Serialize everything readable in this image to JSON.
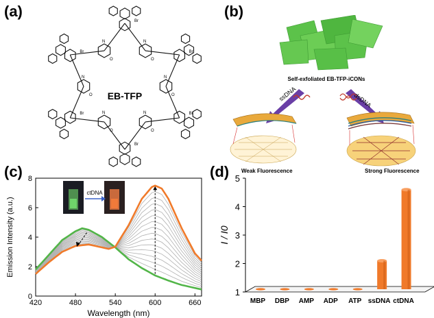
{
  "panels": {
    "a": {
      "letter": "(a)",
      "center_label": "EB-TFP",
      "atom_labels": {
        "bromide": "Br",
        "nitrogen": "N",
        "oxygen": "O"
      }
    },
    "b": {
      "letter": "(b)",
      "title": "Self-exfoliated EB-TFP-iCONs",
      "arrow_left": "ssDNA",
      "arrow_right": "dsDNA",
      "caption_left": "Weak Fluorescence",
      "caption_right": "Strong Fluorescence"
    },
    "c": {
      "letter": "(c)",
      "inset_label": "ctDNA"
    },
    "d": {
      "letter": "(d)"
    }
  },
  "colors": {
    "orange": "#f07a2a",
    "green": "#52b548",
    "gray": "#b0b0b0",
    "sheet_green": "#5cc24a",
    "arrow_purple": "#6a3fa6"
  },
  "chart_data": [
    {
      "id": "c",
      "type": "line",
      "xlabel": "Wavelength (nm)",
      "ylabel": "Emission Intensity (a.u.)",
      "xlim": [
        420,
        670
      ],
      "ylim": [
        0,
        8
      ],
      "xticks": [
        "420",
        "480",
        "540",
        "600",
        "660"
      ],
      "yticks": [
        "0",
        "2",
        "4",
        "6",
        "8"
      ],
      "series": [
        {
          "role": "initial (green)",
          "x": [
            420,
            440,
            460,
            480,
            490,
            500,
            520,
            540,
            560,
            580,
            600,
            620,
            640,
            660,
            670
          ],
          "y": [
            1.8,
            2.8,
            3.8,
            4.4,
            4.6,
            4.5,
            4.0,
            3.3,
            2.5,
            1.9,
            1.4,
            1.05,
            0.75,
            0.55,
            0.45
          ]
        },
        {
          "role": "final (orange)",
          "x": [
            420,
            440,
            460,
            480,
            500,
            520,
            530,
            540,
            560,
            580,
            595,
            600,
            610,
            620,
            640,
            660,
            670
          ],
          "y": [
            1.5,
            2.3,
            3.0,
            3.4,
            3.5,
            3.3,
            3.2,
            3.35,
            4.8,
            6.6,
            7.4,
            7.5,
            7.3,
            6.6,
            4.6,
            2.9,
            2.4
          ]
        }
      ],
      "intermediate_count": 14,
      "annotations": [
        "dashed arrow down at 480 nm",
        "dashed arrow up at 600 nm"
      ]
    },
    {
      "id": "d",
      "type": "bar",
      "ylabel": "I / I0",
      "ylim": [
        1,
        5
      ],
      "yticks": [
        "1",
        "2",
        "3",
        "4",
        "5"
      ],
      "categories": [
        "MBP",
        "DBP",
        "AMP",
        "ADP",
        "ATP",
        "ssDNA",
        "ctDNA"
      ],
      "values": [
        1.0,
        1.0,
        1.0,
        1.0,
        1.0,
        2.0,
        4.5
      ]
    }
  ]
}
